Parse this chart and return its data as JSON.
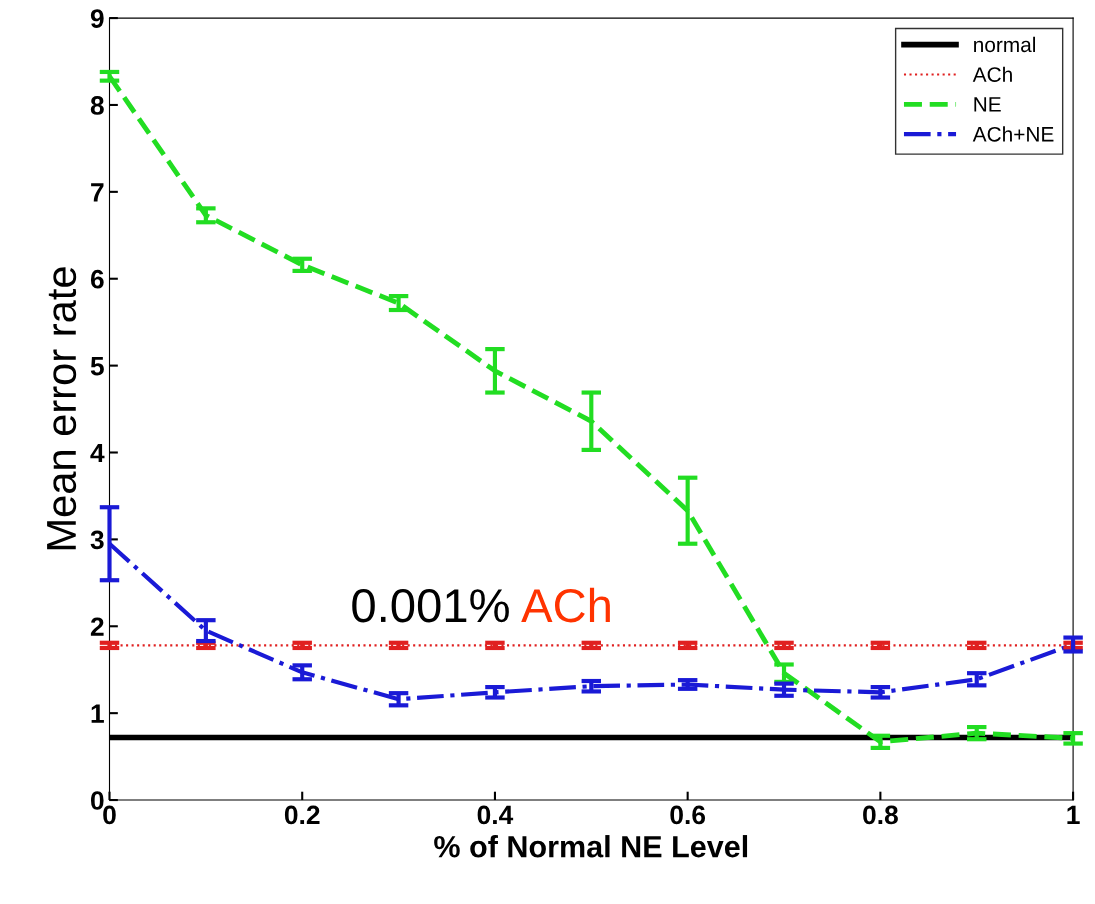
{
  "chart_data": {
    "type": "line",
    "xlabel": "% of Normal NE Level",
    "ylabel": "Mean error rate",
    "x": [
      0,
      0.1,
      0.2,
      0.3,
      0.4,
      0.5,
      0.6,
      0.7,
      0.8,
      0.9,
      1.0
    ],
    "series": [
      {
        "name": "normal",
        "color": "#000000",
        "line_style": "solid",
        "values": [
          0.72,
          0.72,
          0.72,
          0.72,
          0.72,
          0.72,
          0.72,
          0.72,
          0.72,
          0.72,
          0.72
        ]
      },
      {
        "name": "ACh",
        "color": "#e02020",
        "line_style": "dotted",
        "values": [
          1.78,
          1.78,
          1.78,
          1.78,
          1.78,
          1.78,
          1.78,
          1.78,
          1.78,
          1.78,
          1.78
        ],
        "errors": [
          0.03,
          0.03,
          0.03,
          0.03,
          0.03,
          0.03,
          0.03,
          0.03,
          0.03,
          0.03,
          0.03
        ]
      },
      {
        "name": "NE",
        "color": "#22dd22",
        "line_style": "dashed",
        "values": [
          8.33,
          6.73,
          6.16,
          5.72,
          4.94,
          4.36,
          3.33,
          1.46,
          0.67,
          0.77,
          0.71
        ],
        "errors": [
          0.05,
          0.08,
          0.07,
          0.08,
          0.25,
          0.33,
          0.38,
          0.1,
          0.07,
          0.07,
          0.06
        ]
      },
      {
        "name": "ACh+NE",
        "color": "#1a1ad6",
        "line_style": "dashdot",
        "values": [
          2.95,
          1.95,
          1.47,
          1.16,
          1.24,
          1.31,
          1.33,
          1.27,
          1.24,
          1.39,
          1.79
        ],
        "errors": [
          0.42,
          0.12,
          0.08,
          0.07,
          0.06,
          0.06,
          0.05,
          0.07,
          0.06,
          0.07,
          0.08
        ]
      }
    ],
    "xlim": [
      0,
      1
    ],
    "xticks": [
      0,
      0.2,
      0.4,
      0.6,
      0.8,
      1
    ],
    "ylim": [
      0,
      9
    ],
    "yticks": [
      0,
      1,
      2,
      3,
      4,
      5,
      6,
      7,
      8,
      9
    ],
    "annotations": [
      "0.001%",
      "ACh"
    ],
    "legend": "top right",
    "grid": false
  }
}
